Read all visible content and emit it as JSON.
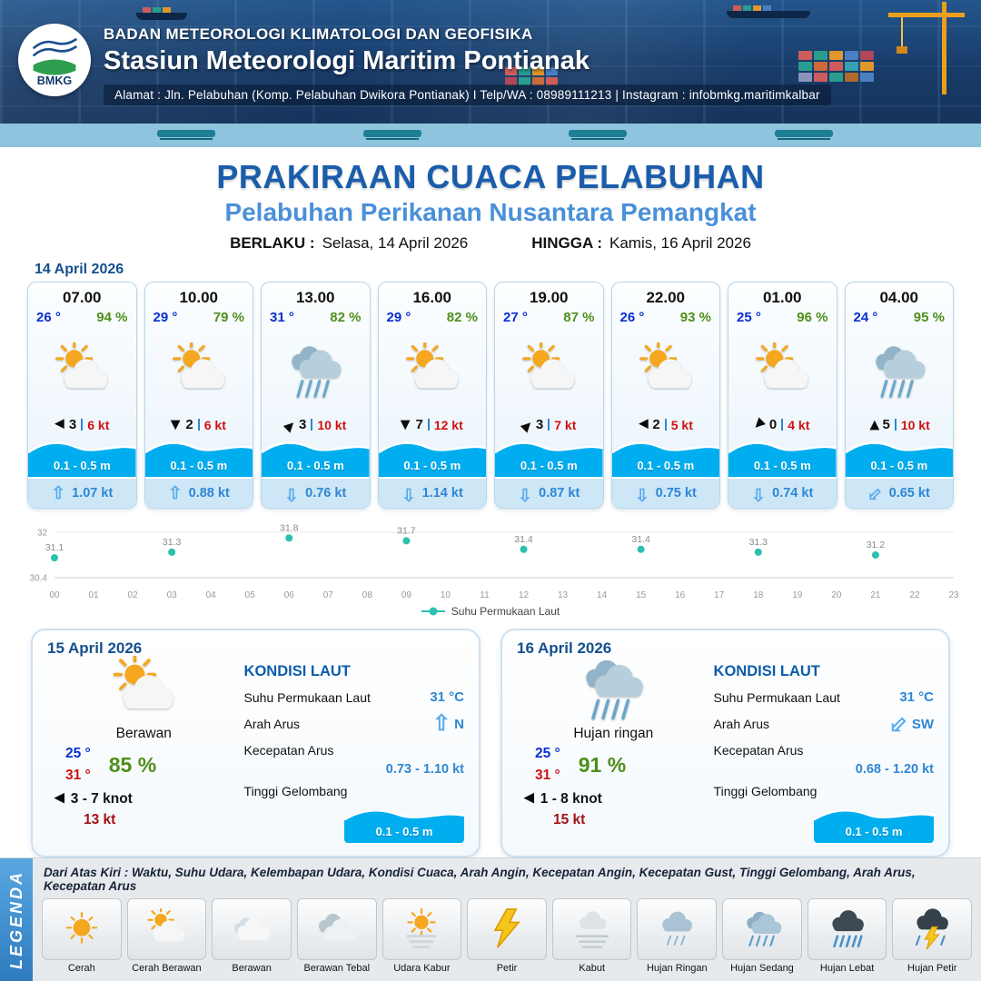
{
  "header": {
    "logo_text": "BMKG",
    "agency": "BADAN METEOROLOGI KLIMATOLOGI DAN GEOFISIKA",
    "station": "Stasiun Meteorologi Maritim Pontianak",
    "address": "Alamat : Jln. Pelabuhan (Komp. Pelabuhan Dwikora Pontianak) I Telp/WA : 08989111213 | Instagram : infobmkg.maritimkalbar"
  },
  "title": {
    "main": "PRAKIRAAN CUACA PELABUHAN",
    "sub": "Pelabuhan Perikanan Nusantara Pemangkat",
    "berlaku_label": "BERLAKU :",
    "berlaku_value": "Selasa, 14 April 2026",
    "hingga_label": "HINGGA :",
    "hingga_value": "Kamis, 16 April 2026"
  },
  "forecast_date": "14 April 2026",
  "cards": [
    {
      "time": "07.00",
      "temp": "26 °",
      "rh": "94 %",
      "icon": "sun-cloud",
      "wind_dir": "left",
      "wind_val": "3",
      "wind_kt": "6 kt",
      "wave": "0.1 - 0.5 m",
      "cur_dir": "up",
      "cur_val": "1.07 kt"
    },
    {
      "time": "10.00",
      "temp": "29 °",
      "rh": "79 %",
      "icon": "sun-cloud",
      "wind_dir": "down",
      "wind_val": "2",
      "wind_kt": "6 kt",
      "wave": "0.1 - 0.5 m",
      "cur_dir": "up",
      "cur_val": "0.88 kt"
    },
    {
      "time": "13.00",
      "temp": "31 °",
      "rh": "82 %",
      "icon": "rain",
      "wind_dir": "ne",
      "wind_val": "3",
      "wind_kt": "10 kt",
      "wave": "0.1 - 0.5 m",
      "cur_dir": "down",
      "cur_val": "0.76 kt"
    },
    {
      "time": "16.00",
      "temp": "29 °",
      "rh": "82 %",
      "icon": "sun-cloud",
      "wind_dir": "down",
      "wind_val": "7",
      "wind_kt": "12 kt",
      "wave": "0.1 - 0.5 m",
      "cur_dir": "down",
      "cur_val": "1.14 kt"
    },
    {
      "time": "19.00",
      "temp": "27 °",
      "rh": "87 %",
      "icon": "sun-cloud",
      "wind_dir": "ne",
      "wind_val": "3",
      "wind_kt": "7 kt",
      "wave": "0.1 - 0.5 m",
      "cur_dir": "down",
      "cur_val": "0.87 kt"
    },
    {
      "time": "22.00",
      "temp": "26 °",
      "rh": "93 %",
      "icon": "sun-cloud",
      "wind_dir": "left",
      "wind_val": "2",
      "wind_kt": "5 kt",
      "wave": "0.1 - 0.5 m",
      "cur_dir": "down",
      "cur_val": "0.75 kt"
    },
    {
      "time": "01.00",
      "temp": "25 °",
      "rh": "96 %",
      "icon": "sun-cloud",
      "wind_dir": "sw",
      "wind_val": "0",
      "wind_kt": "4 kt",
      "wave": "0.1 - 0.5 m",
      "cur_dir": "down",
      "cur_val": "0.74 kt"
    },
    {
      "time": "04.00",
      "temp": "24 °",
      "rh": "95 %",
      "icon": "rain",
      "wind_dir": "up",
      "wind_val": "5",
      "wind_kt": "10 kt",
      "wave": "0.1 - 0.5 m",
      "cur_dir": "sw",
      "cur_val": "0.65 kt"
    }
  ],
  "chart_data": {
    "type": "scatter",
    "title": "",
    "xlabel": "",
    "ylabel": "",
    "legend": "Suhu Permukaan Laut",
    "legend_position": "bottom",
    "ylim": [
      30.4,
      32
    ],
    "y_ticks": [
      {
        "value": 32,
        "label": "32"
      },
      {
        "value": 30.4,
        "label": "30.4"
      }
    ],
    "x_ticks": [
      "00",
      "01",
      "02",
      "03",
      "04",
      "05",
      "06",
      "07",
      "08",
      "09",
      "10",
      "11",
      "12",
      "13",
      "14",
      "15",
      "16",
      "17",
      "18",
      "19",
      "20",
      "21",
      "22",
      "23"
    ],
    "points": [
      {
        "hour": 0,
        "value": 31.1
      },
      {
        "hour": 3,
        "value": 31.3
      },
      {
        "hour": 6,
        "value": 31.8
      },
      {
        "hour": 9,
        "value": 31.7
      },
      {
        "hour": 12,
        "value": 31.4
      },
      {
        "hour": 15,
        "value": 31.4
      },
      {
        "hour": 18,
        "value": 31.3
      },
      {
        "hour": 21,
        "value": 31.2
      }
    ],
    "dot_color": "#2bc0b0"
  },
  "labels": {
    "kondisi_laut": "KONDISI LAUT",
    "sst": "Suhu Permukaan Laut",
    "arah_arus": "Arah Arus",
    "kecepatan_arus": "Kecepatan Arus",
    "tinggi_gelombang": "Tinggi Gelombang"
  },
  "daily": [
    {
      "date": "15 April 2026",
      "icon": "sun-cloud",
      "condition": "Berawan",
      "temp_min": "25 °",
      "temp_max": "31 °",
      "rh": "85 %",
      "wind_dir": "left",
      "wind": "3 - 7 knot",
      "gust": "13 kt",
      "sea": {
        "sst": "31 °C",
        "arah_dir": "up",
        "arah": "N",
        "kecepatan": "0.73 - 1.10 kt",
        "gelombang": "0.1 - 0.5 m"
      }
    },
    {
      "date": "16 April 2026",
      "icon": "rain",
      "condition": "Hujan ringan",
      "temp_min": "25 °",
      "temp_max": "31 °",
      "rh": "91 %",
      "wind_dir": "left",
      "wind": "1 - 8 knot",
      "gust": "15 kt",
      "sea": {
        "sst": "31 °C",
        "arah_dir": "sw",
        "arah": "SW",
        "kecepatan": "0.68 - 1.20 kt",
        "gelombang": "0.1 - 0.5 m"
      }
    }
  ],
  "legend": {
    "title": "LEGENDA",
    "desc": "Dari Atas Kiri : Waktu, Suhu Udara, Kelembapan Udara, Kondisi Cuaca, Arah Angin, Kecepatan Angin, Kecepatan Gust, Tinggi Gelombang, Arah Arus, Kecepatan Arus",
    "items": [
      {
        "label": "Cerah",
        "icon": "sun"
      },
      {
        "label": "Cerah Berawan",
        "icon": "sun-cloud"
      },
      {
        "label": "Berawan",
        "icon": "cloud"
      },
      {
        "label": "Berawan Tebal",
        "icon": "cloud-thick"
      },
      {
        "label": "Udara Kabur",
        "icon": "haze"
      },
      {
        "label": "Petir",
        "icon": "lightning"
      },
      {
        "label": "Kabut",
        "icon": "fog"
      },
      {
        "label": "Hujan Ringan",
        "icon": "rain-light"
      },
      {
        "label": "Hujan Sedang",
        "icon": "rain-medium"
      },
      {
        "label": "Hujan Lebat",
        "icon": "rain-heavy"
      },
      {
        "label": "Hujan Petir",
        "icon": "thunderstorm"
      }
    ]
  },
  "colors": {
    "header_navy": "#183c6a",
    "title_blue": "#1a5dab",
    "sub_blue": "#4a90d9",
    "temp_blue": "#0a2fd0",
    "rh_green": "#4e8f1a",
    "wind_red": "#cc1111",
    "wave_blue": "#00aeef",
    "current_blue": "#2e86d4",
    "dot_teal": "#2bc0b0"
  }
}
